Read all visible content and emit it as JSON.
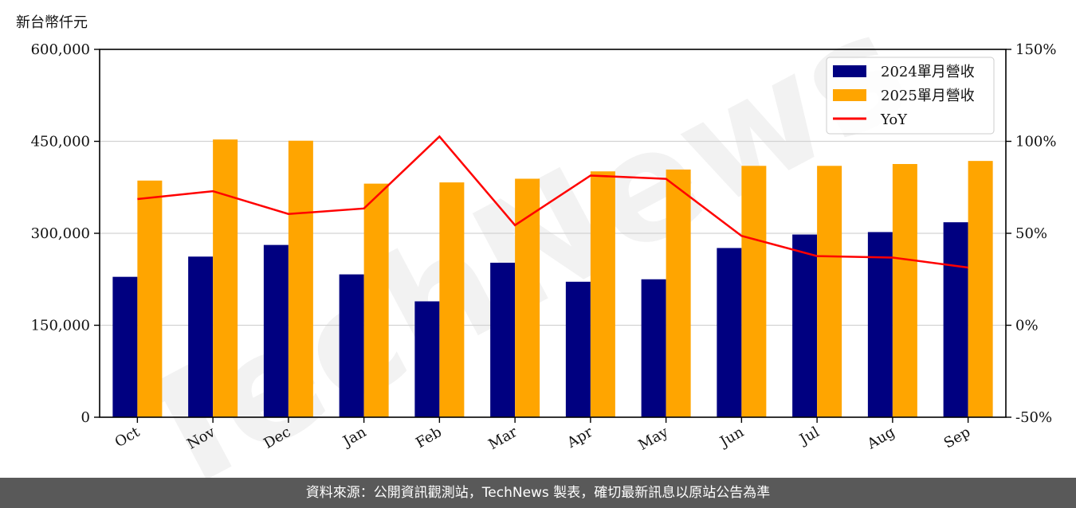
{
  "chart_data": {
    "type": "bar+line",
    "unit_label": "新台幣仟元",
    "categories": [
      "Oct",
      "Nov",
      "Dec",
      "Jan",
      "Feb",
      "Mar",
      "Apr",
      "May",
      "Jun",
      "Jul",
      "Aug",
      "Sep"
    ],
    "series": [
      {
        "name": "2024單月營收",
        "type": "bar",
        "axis": "left",
        "color": "#000080",
        "values": [
          229000,
          262000,
          281000,
          233000,
          189000,
          252000,
          221000,
          225000,
          276000,
          298000,
          302000,
          318000
        ]
      },
      {
        "name": "2025單月營收",
        "type": "bar",
        "axis": "left",
        "color": "#FFA500",
        "values": [
          386000,
          453000,
          451000,
          381000,
          383000,
          389000,
          401000,
          404000,
          410000,
          410000,
          413000,
          418000
        ]
      },
      {
        "name": "YoY",
        "type": "line",
        "axis": "right",
        "color": "#FF0000",
        "values": [
          68.6,
          72.9,
          60.5,
          63.5,
          102.6,
          54.4,
          81.4,
          79.6,
          48.6,
          37.6,
          36.8,
          31.4
        ]
      }
    ],
    "left_axis": {
      "ylim": [
        0,
        600000
      ],
      "ticks": [
        0,
        150000,
        300000,
        450000,
        600000
      ],
      "tick_labels": [
        "0",
        "150,000",
        "300,000",
        "450,000",
        "600,000"
      ]
    },
    "right_axis": {
      "ylim": [
        -50,
        150
      ],
      "ticks": [
        -50,
        0,
        50,
        100,
        150
      ],
      "tick_labels": [
        "-50%",
        "0%",
        "50%",
        "100%",
        "150%"
      ]
    },
    "grid": true,
    "legend_position": "top-right",
    "watermark": "TechNews"
  },
  "footer": {
    "text": "資料來源：公開資訊觀測站，TechNews 製表，確切最新訊息以原站公告為準"
  }
}
